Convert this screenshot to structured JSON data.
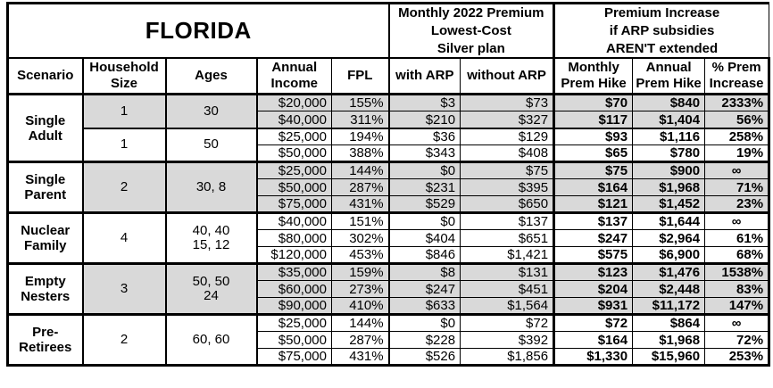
{
  "colors": {
    "shaded_row": "#d9d9d9",
    "border": "#000000",
    "background": "#ffffff"
  },
  "chart_data": {
    "type": "table",
    "title": "FLORIDA",
    "header_groups": [
      "Monthly 2022 Premium\nLowest-Cost\nSilver plan",
      "Premium Increase\nif ARP subsidies\nAREN'T extended"
    ],
    "column_headers": [
      "Scenario",
      "Household\nSize",
      "Ages",
      "Annual\nIncome",
      "FPL",
      "with ARP",
      "without ARP",
      "Monthly\nPrem Hike",
      "Annual\nPrem Hike",
      "% Prem\nIncrease"
    ],
    "scenarios": [
      {
        "name": "Single Adult",
        "groups": [
          {
            "household_size": "1",
            "ages": "30",
            "shaded": true,
            "rows": [
              {
                "income": "$20,000",
                "fpl": "155%",
                "with_arp": "$3",
                "without_arp": "$73",
                "monthly_hike": "$70",
                "annual_hike": "$840",
                "pct_increase": "2333%"
              },
              {
                "income": "$40,000",
                "fpl": "311%",
                "with_arp": "$210",
                "without_arp": "$327",
                "monthly_hike": "$117",
                "annual_hike": "$1,404",
                "pct_increase": "56%"
              }
            ]
          },
          {
            "household_size": "1",
            "ages": "50",
            "shaded": false,
            "rows": [
              {
                "income": "$25,000",
                "fpl": "194%",
                "with_arp": "$36",
                "without_arp": "$129",
                "monthly_hike": "$93",
                "annual_hike": "$1,116",
                "pct_increase": "258%"
              },
              {
                "income": "$50,000",
                "fpl": "388%",
                "with_arp": "$343",
                "without_arp": "$408",
                "monthly_hike": "$65",
                "annual_hike": "$780",
                "pct_increase": "19%"
              }
            ]
          }
        ]
      },
      {
        "name": "Single Parent",
        "groups": [
          {
            "household_size": "2",
            "ages": "30, 8",
            "shaded": true,
            "rows": [
              {
                "income": "$25,000",
                "fpl": "144%",
                "with_arp": "$0",
                "without_arp": "$75",
                "monthly_hike": "$75",
                "annual_hike": "$900",
                "pct_increase": "∞"
              },
              {
                "income": "$50,000",
                "fpl": "287%",
                "with_arp": "$231",
                "without_arp": "$395",
                "monthly_hike": "$164",
                "annual_hike": "$1,968",
                "pct_increase": "71%"
              },
              {
                "income": "$75,000",
                "fpl": "431%",
                "with_arp": "$529",
                "without_arp": "$650",
                "monthly_hike": "$121",
                "annual_hike": "$1,452",
                "pct_increase": "23%"
              }
            ]
          }
        ]
      },
      {
        "name": "Nuclear Family",
        "groups": [
          {
            "household_size": "4",
            "ages": "40, 40\n15, 12",
            "shaded": false,
            "rows": [
              {
                "income": "$40,000",
                "fpl": "151%",
                "with_arp": "$0",
                "without_arp": "$137",
                "monthly_hike": "$137",
                "annual_hike": "$1,644",
                "pct_increase": "∞"
              },
              {
                "income": "$80,000",
                "fpl": "302%",
                "with_arp": "$404",
                "without_arp": "$651",
                "monthly_hike": "$247",
                "annual_hike": "$2,964",
                "pct_increase": "61%"
              },
              {
                "income": "$120,000",
                "fpl": "453%",
                "with_arp": "$846",
                "without_arp": "$1,421",
                "monthly_hike": "$575",
                "annual_hike": "$6,900",
                "pct_increase": "68%"
              }
            ]
          }
        ]
      },
      {
        "name": "Empty Nesters",
        "groups": [
          {
            "household_size": "3",
            "ages": "50, 50\n24",
            "shaded": true,
            "rows": [
              {
                "income": "$35,000",
                "fpl": "159%",
                "with_arp": "$8",
                "without_arp": "$131",
                "monthly_hike": "$123",
                "annual_hike": "$1,476",
                "pct_increase": "1538%"
              },
              {
                "income": "$60,000",
                "fpl": "273%",
                "with_arp": "$247",
                "without_arp": "$451",
                "monthly_hike": "$204",
                "annual_hike": "$2,448",
                "pct_increase": "83%"
              },
              {
                "income": "$90,000",
                "fpl": "410%",
                "with_arp": "$633",
                "without_arp": "$1,564",
                "monthly_hike": "$931",
                "annual_hike": "$11,172",
                "pct_increase": "147%"
              }
            ]
          }
        ]
      },
      {
        "name": "Pre-Retirees",
        "groups": [
          {
            "household_size": "2",
            "ages": "60, 60",
            "shaded": false,
            "rows": [
              {
                "income": "$25,000",
                "fpl": "144%",
                "with_arp": "$0",
                "without_arp": "$72",
                "monthly_hike": "$72",
                "annual_hike": "$864",
                "pct_increase": "∞"
              },
              {
                "income": "$50,000",
                "fpl": "287%",
                "with_arp": "$228",
                "without_arp": "$392",
                "monthly_hike": "$164",
                "annual_hike": "$1,968",
                "pct_increase": "72%"
              },
              {
                "income": "$75,000",
                "fpl": "431%",
                "with_arp": "$526",
                "without_arp": "$1,856",
                "monthly_hike": "$1,330",
                "annual_hike": "$15,960",
                "pct_increase": "253%"
              }
            ]
          }
        ]
      }
    ]
  }
}
